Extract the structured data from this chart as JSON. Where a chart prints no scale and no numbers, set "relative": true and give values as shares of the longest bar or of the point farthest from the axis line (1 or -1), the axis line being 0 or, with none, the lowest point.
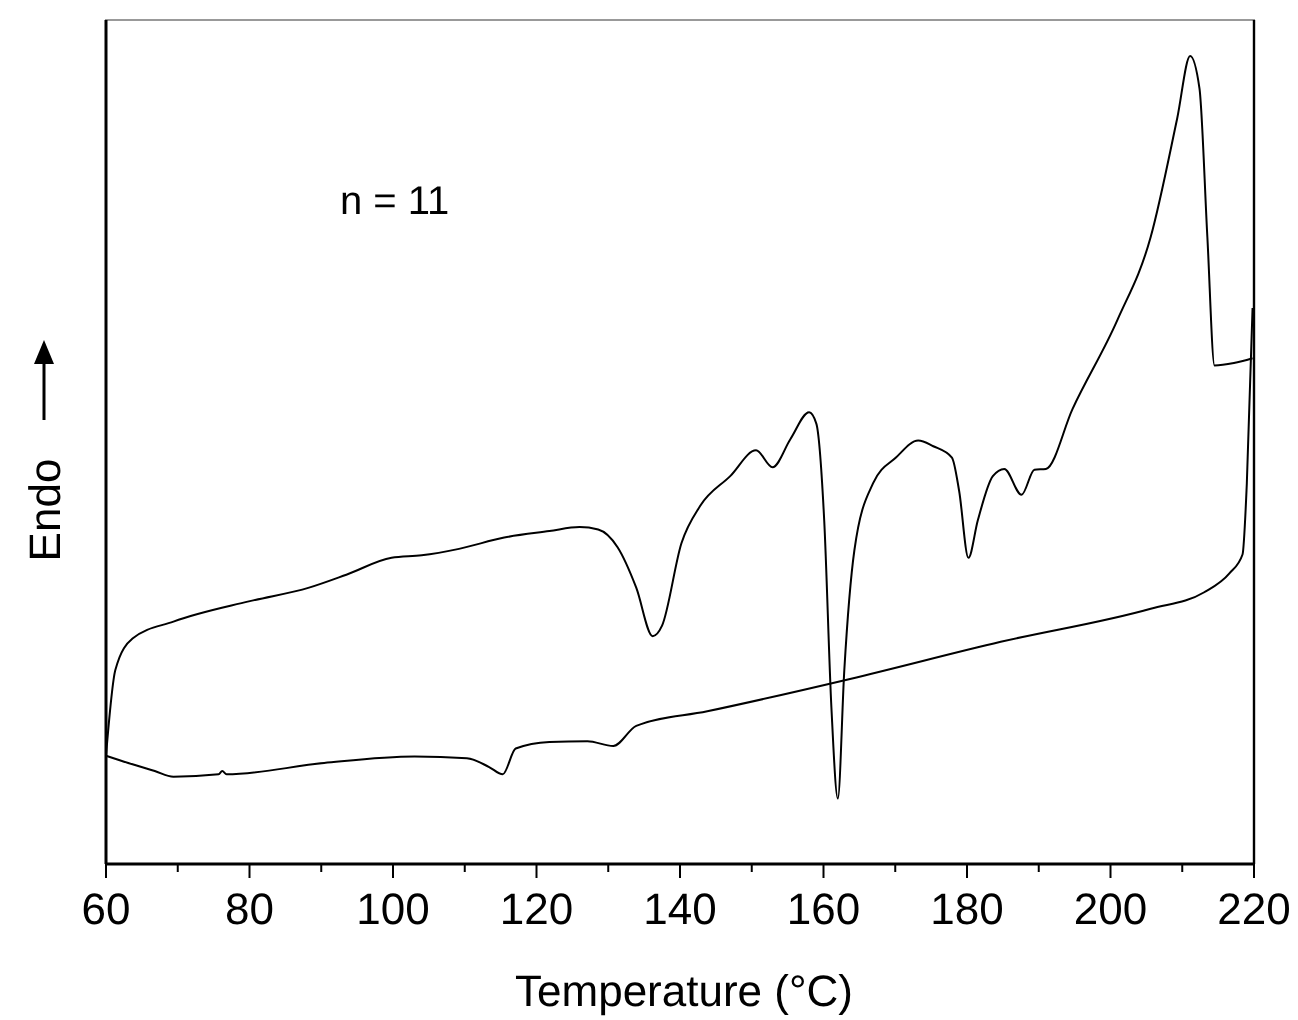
{
  "chart_data": {
    "type": "line",
    "xlabel": "Temperature (°C)",
    "ylabel": "Endo",
    "relative": true,
    "annotations": [
      "n = 11"
    ],
    "xlim": [
      60,
      220
    ],
    "xticks": [
      60,
      {
        "value": 70,
        "label": null
      },
      80,
      {
        "value": 90,
        "label": null
      },
      100,
      {
        "value": 110,
        "label": null
      },
      120,
      {
        "value": 130,
        "label": null
      },
      140,
      {
        "value": 150,
        "label": null
      },
      160,
      {
        "value": 170,
        "label": null
      },
      180,
      {
        "value": 190,
        "label": null
      },
      200,
      {
        "value": 210,
        "label": null
      },
      220
    ],
    "series": [
      {
        "color": "#000000",
        "x": [
          60,
          61.3,
          63.7,
          69.4,
          79.9,
          88.3,
          93.5,
          99.8,
          104,
          109.2,
          115.5,
          121.8,
          126,
          128.6,
          131.3,
          133.9,
          136.2,
          137.5,
          140.2,
          142.8,
          147,
          150.6,
          152.9,
          155.4,
          158,
          159,
          160.1,
          161.1,
          162,
          162.9,
          164.3,
          166.9,
          170.1,
          173.2,
          175.3,
          177.9,
          178.9,
          180.2,
          181.5,
          183.6,
          185.2,
          187.6,
          189.4,
          191,
          194.7,
          201,
          205.6,
          209.3,
          211.1,
          212.4,
          213.5,
          214.5,
          217.2,
          219.8
        ],
        "values": [
          0.134,
          0.24,
          0.279,
          0.3,
          0.325,
          0.342,
          0.358,
          0.379,
          0.382,
          0.39,
          0.404,
          0.412,
          0.417,
          0.414,
          0.392,
          0.342,
          0.282,
          0.295,
          0.397,
          0.443,
          0.48,
          0.512,
          0.491,
          0.526,
          0.559,
          0.545,
          0.425,
          0.194,
          0.081,
          0.24,
          0.388,
          0.471,
          0.503,
          0.524,
          0.517,
          0.503,
          0.462,
          0.379,
          0.425,
          0.48,
          0.489,
          0.457,
          0.488,
          0.489,
          0.563,
          0.674,
          0.776,
          0.923,
          1,
          0.96,
          0.776,
          0.617,
          0.62,
          0.626
        ]
      },
      {
        "color": "#000000",
        "x": [
          60,
          63.1,
          66.8,
          69.4,
          75.7,
          76.2,
          76.8,
          90.4,
          103,
          110.3,
          113.4,
          115.3,
          117.1,
          121.8,
          127.1,
          130.7,
          133.9,
          143.8,
          163.7,
          184.7,
          205.6,
          213,
          216.6,
          218.4,
          219,
          219.8
        ],
        "values": [
          0.134,
          0.125,
          0.115,
          0.108,
          0.111,
          0.115,
          0.111,
          0.125,
          0.133,
          0.131,
          0.12,
          0.111,
          0.143,
          0.151,
          0.152,
          0.146,
          0.171,
          0.189,
          0.229,
          0.275,
          0.316,
          0.336,
          0.36,
          0.383,
          0.471,
          0.688
        ]
      }
    ]
  }
}
